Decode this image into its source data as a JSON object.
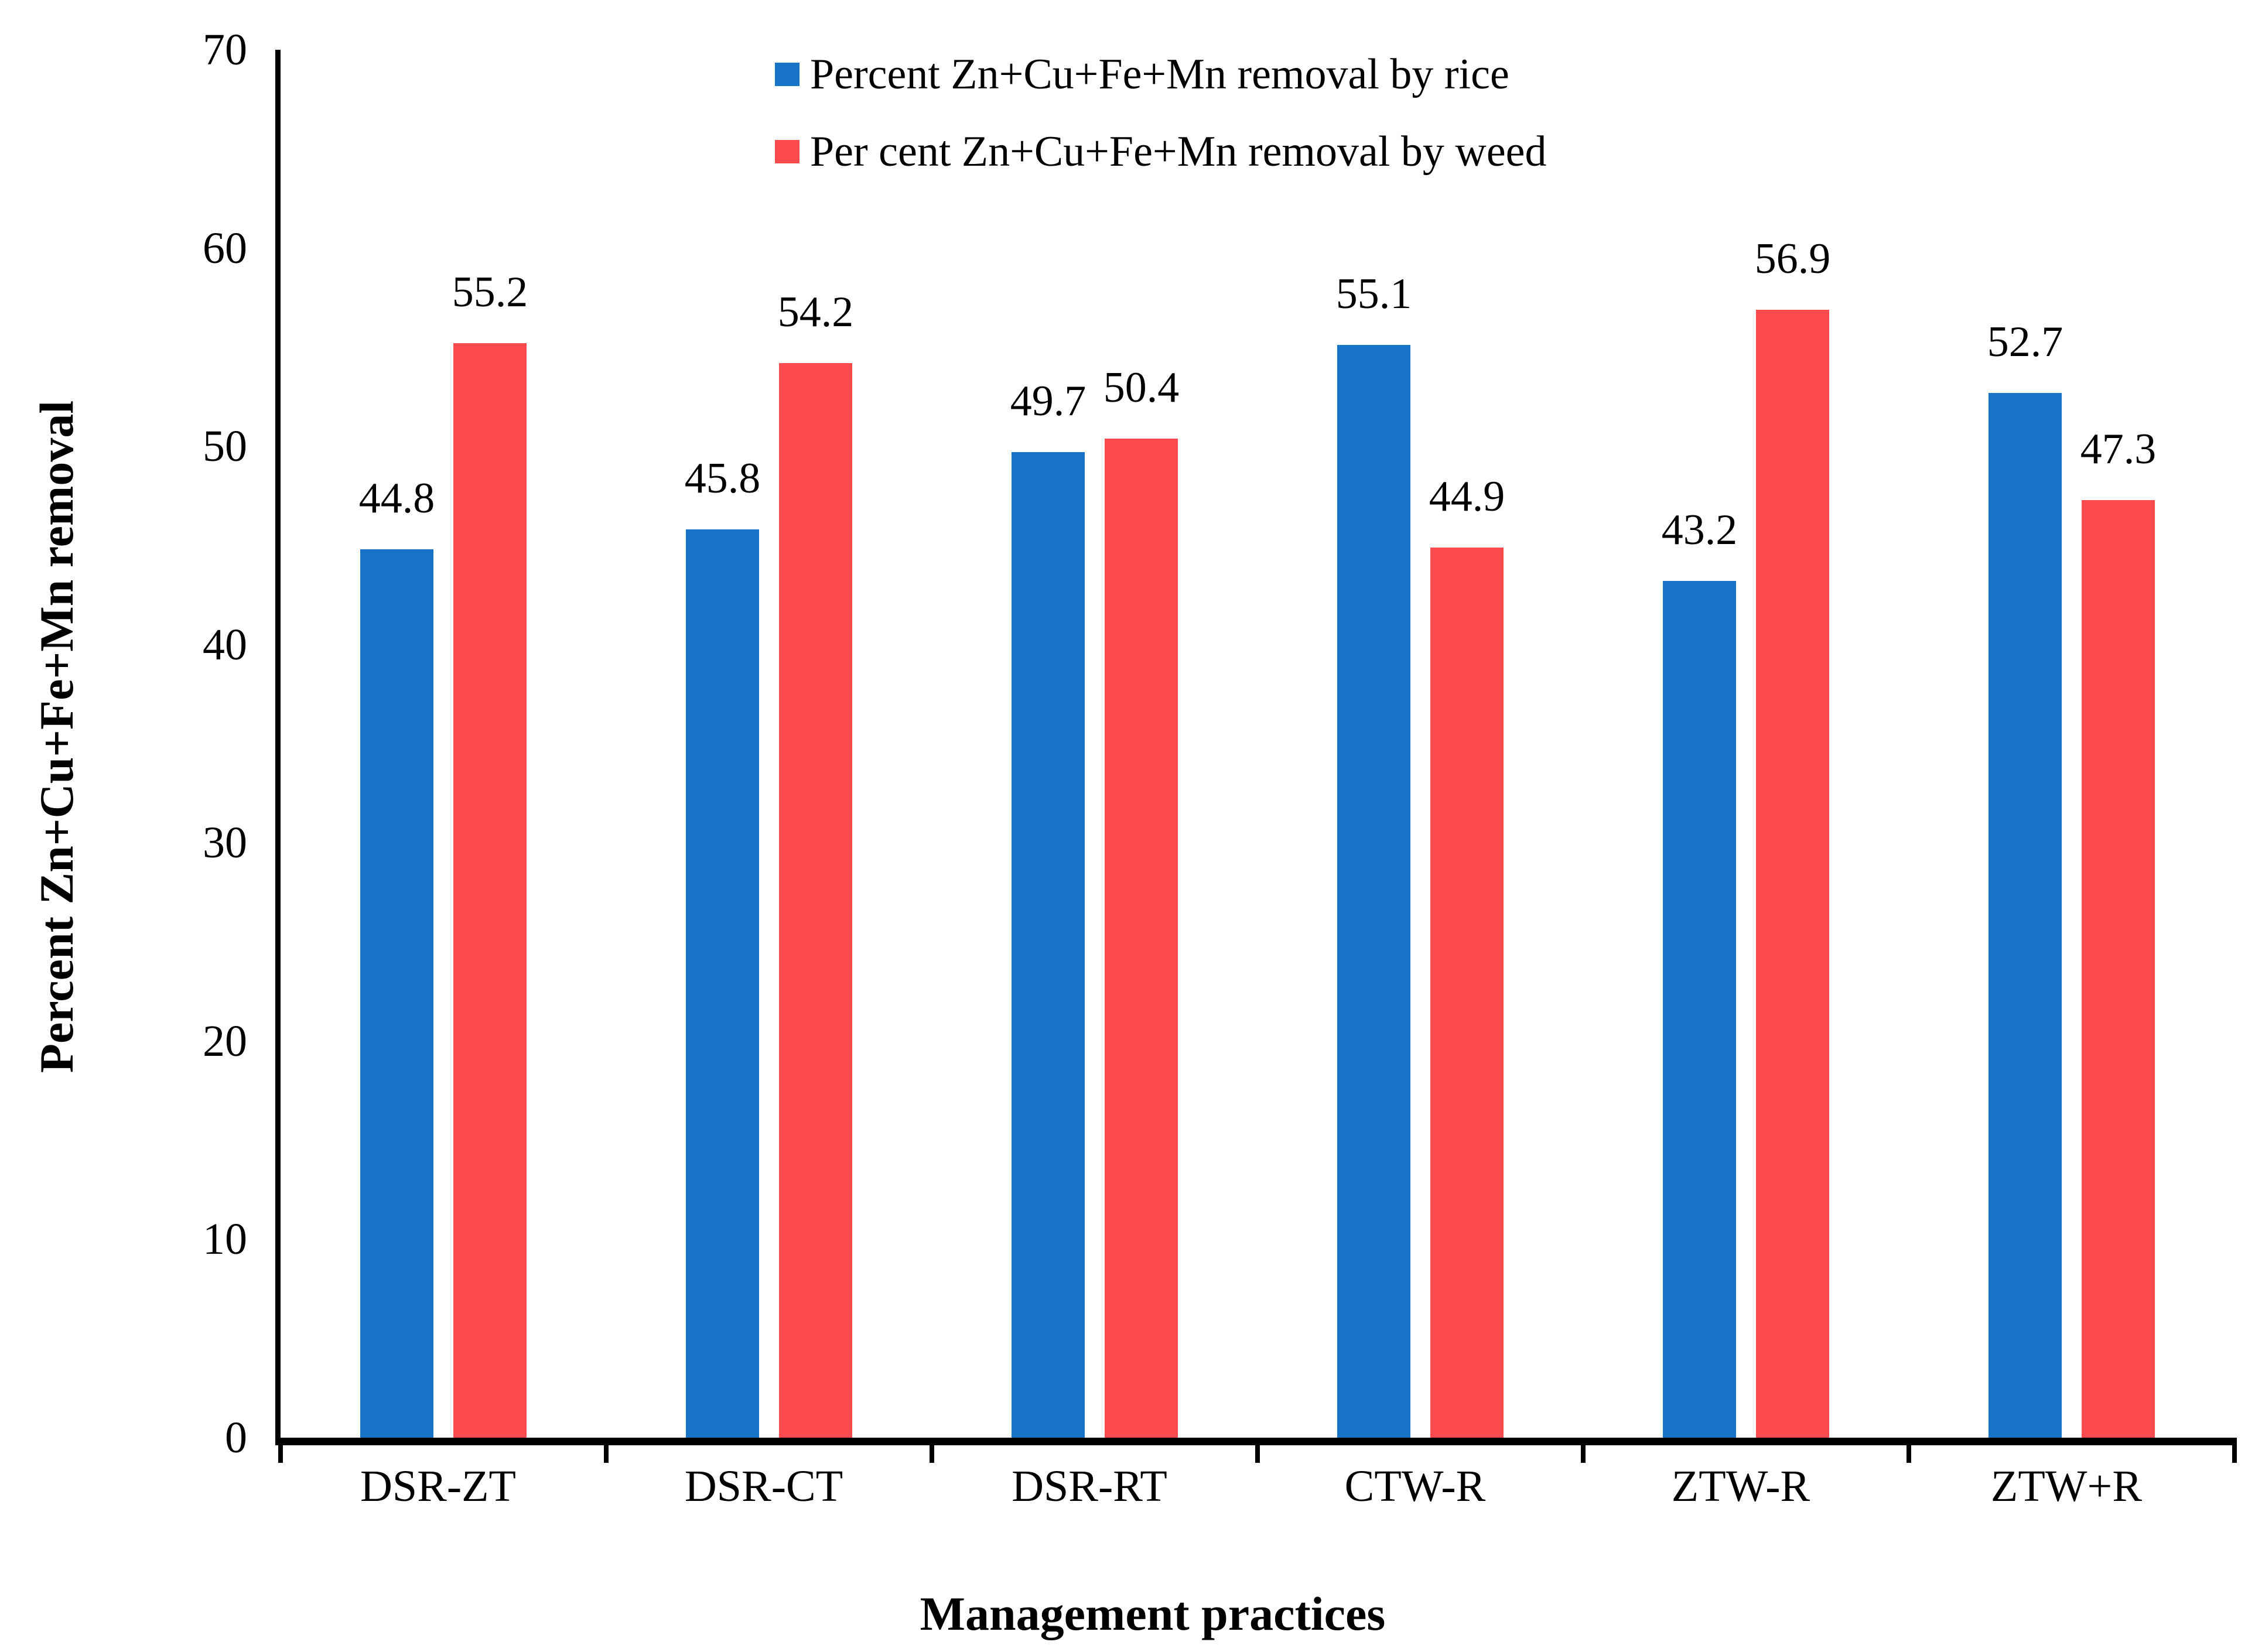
{
  "figure": {
    "background": "#ffffff"
  },
  "chart_data": {
    "type": "bar",
    "title": "",
    "categories": [
      "DSR-ZT",
      "DSR-CT",
      "DSR-RT",
      "CTW-R",
      "ZTW-R",
      "ZTW+R"
    ],
    "series": [
      {
        "name": "Percent Zn+Cu+Fe+Mn removal by rice",
        "color": "#1673C8",
        "values": [
          44.8,
          45.8,
          49.7,
          55.1,
          43.2,
          52.7
        ]
      },
      {
        "name": "Per cent Zn+Cu+Fe+Mn removal by weed",
        "color": "#FC4B4F",
        "values": [
          55.2,
          54.2,
          50.4,
          44.9,
          56.9,
          47.3
        ]
      }
    ],
    "xlabel": "Management practices",
    "ylabel": "Percent Zn+Cu+Fe+Mn removal",
    "ylim": [
      0,
      70
    ],
    "ytick_step": 10,
    "yticks": [
      0,
      10,
      20,
      30,
      40,
      50,
      60,
      70
    ],
    "grid": false,
    "legend_position": "top-center-inside",
    "value_labels": true,
    "axis_color": "#000000",
    "text_color": "#000000"
  }
}
